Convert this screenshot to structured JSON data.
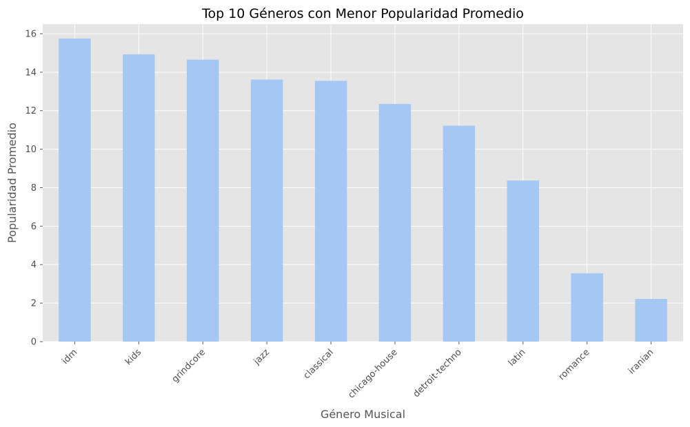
{
  "chart_data": {
    "type": "bar",
    "title": "Top 10 Géneros con Menor Popularidad Promedio",
    "xlabel": "Género Musical",
    "ylabel": "Popularidad Promedio",
    "categories": [
      "idm",
      "kids",
      "grindcore",
      "jazz",
      "classical",
      "chicago-house",
      "detroit-techno",
      "latin",
      "romance",
      "iranian"
    ],
    "values": [
      15.75,
      14.93,
      14.65,
      13.62,
      13.55,
      12.35,
      11.22,
      8.37,
      3.55,
      2.22
    ],
    "yticks": [
      "0",
      "2",
      "4",
      "6",
      "8",
      "10",
      "12",
      "14",
      "16"
    ],
    "ylim": [
      0,
      16.5
    ],
    "grid": true,
    "colors": {
      "bar": "#a4c8f3",
      "plot_background": "#e5e5e5",
      "grid": "#ffffff"
    }
  }
}
